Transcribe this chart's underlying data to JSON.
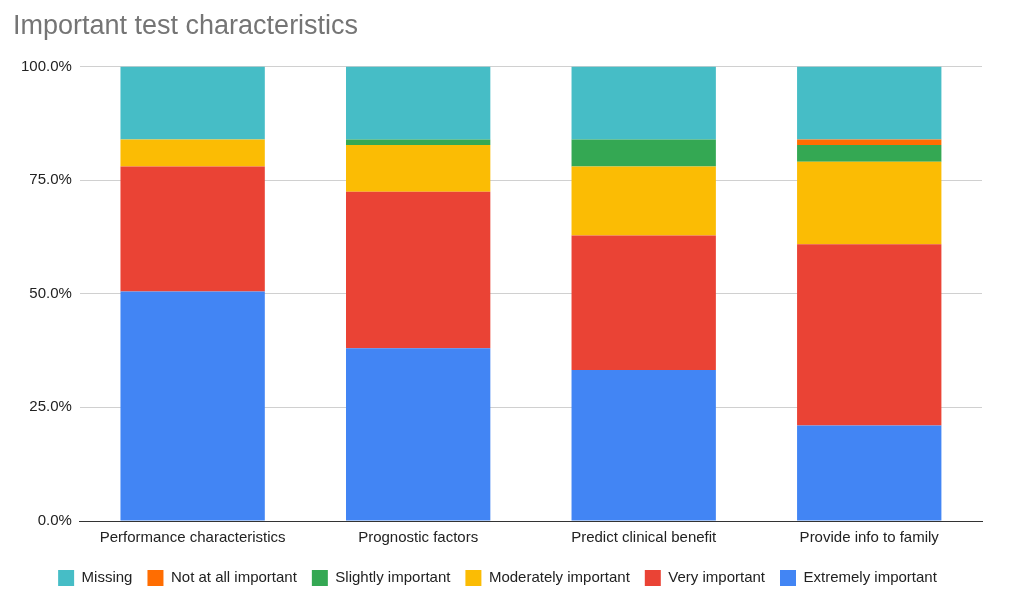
{
  "chart_data": {
    "type": "bar",
    "title": "Important test characteristics",
    "stacked": true,
    "categories": [
      "Performance characteristics",
      "Prognostic factors",
      "Predict clinical benefit",
      "Provide info to family"
    ],
    "series": [
      {
        "name": "Extremely important",
        "color": "#4285f4",
        "values": [
          50.5,
          38.0,
          33.2,
          21.0
        ]
      },
      {
        "name": "Very important",
        "color": "#ea4335",
        "values": [
          27.5,
          34.4,
          29.6,
          39.9
        ]
      },
      {
        "name": "Moderately important",
        "color": "#fbbc04",
        "values": [
          5.9,
          10.3,
          15.2,
          18.1
        ]
      },
      {
        "name": "Slightly important",
        "color": "#34a853",
        "values": [
          0,
          1.2,
          5.9,
          3.7
        ]
      },
      {
        "name": "Not at all important",
        "color": "#ff6d01",
        "values": [
          0,
          0,
          0,
          1.2
        ]
      },
      {
        "name": "Missing",
        "color": "#46bdc6",
        "values": [
          16.1,
          16.1,
          16.1,
          16.1
        ]
      }
    ],
    "ylim": [
      0,
      100
    ],
    "yticks": [
      {
        "value": 0,
        "label": "0.0%"
      },
      {
        "value": 25,
        "label": "25.0%"
      },
      {
        "value": 50,
        "label": "50.0%"
      },
      {
        "value": 75,
        "label": "75.0%"
      },
      {
        "value": 100,
        "label": "100.0%"
      }
    ],
    "grid": "y",
    "legend": "bottom"
  }
}
